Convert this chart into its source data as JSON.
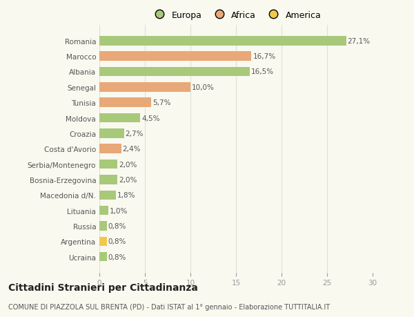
{
  "countries": [
    "Romania",
    "Marocco",
    "Albania",
    "Senegal",
    "Tunisia",
    "Moldova",
    "Croazia",
    "Costa d'Avorio",
    "Serbia/Montenegro",
    "Bosnia-Erzegovina",
    "Macedonia d/N.",
    "Lituania",
    "Russia",
    "Argentina",
    "Ucraina"
  ],
  "values": [
    27.1,
    16.7,
    16.5,
    10.0,
    5.7,
    4.5,
    2.7,
    2.4,
    2.0,
    2.0,
    1.8,
    1.0,
    0.8,
    0.8,
    0.8
  ],
  "labels": [
    "27,1%",
    "16,7%",
    "16,5%",
    "10,0%",
    "5,7%",
    "4,5%",
    "2,7%",
    "2,4%",
    "2,0%",
    "2,0%",
    "1,8%",
    "1,0%",
    "0,8%",
    "0,8%",
    "0,8%"
  ],
  "continents": [
    "Europa",
    "Africa",
    "Europa",
    "Africa",
    "Africa",
    "Europa",
    "Europa",
    "Africa",
    "Europa",
    "Europa",
    "Europa",
    "Europa",
    "Europa",
    "America",
    "Europa"
  ],
  "colors": {
    "Europa": "#a8c87a",
    "Africa": "#e8a878",
    "America": "#f0c84a"
  },
  "title": "Cittadini Stranieri per Cittadinanza",
  "subtitle": "COMUNE DI PIAZZOLA SUL BRENTA (PD) - Dati ISTAT al 1° gennaio - Elaborazione TUTTITALIA.IT",
  "xlim": [
    0,
    30
  ],
  "xticks": [
    0,
    5,
    10,
    15,
    20,
    25,
    30
  ],
  "background_color": "#f9f9f0",
  "grid_color": "#e0e0d0",
  "bar_height": 0.6,
  "label_fontsize": 7.5,
  "tick_fontsize": 7.5,
  "title_fontsize": 10,
  "subtitle_fontsize": 7,
  "legend_fontsize": 9
}
